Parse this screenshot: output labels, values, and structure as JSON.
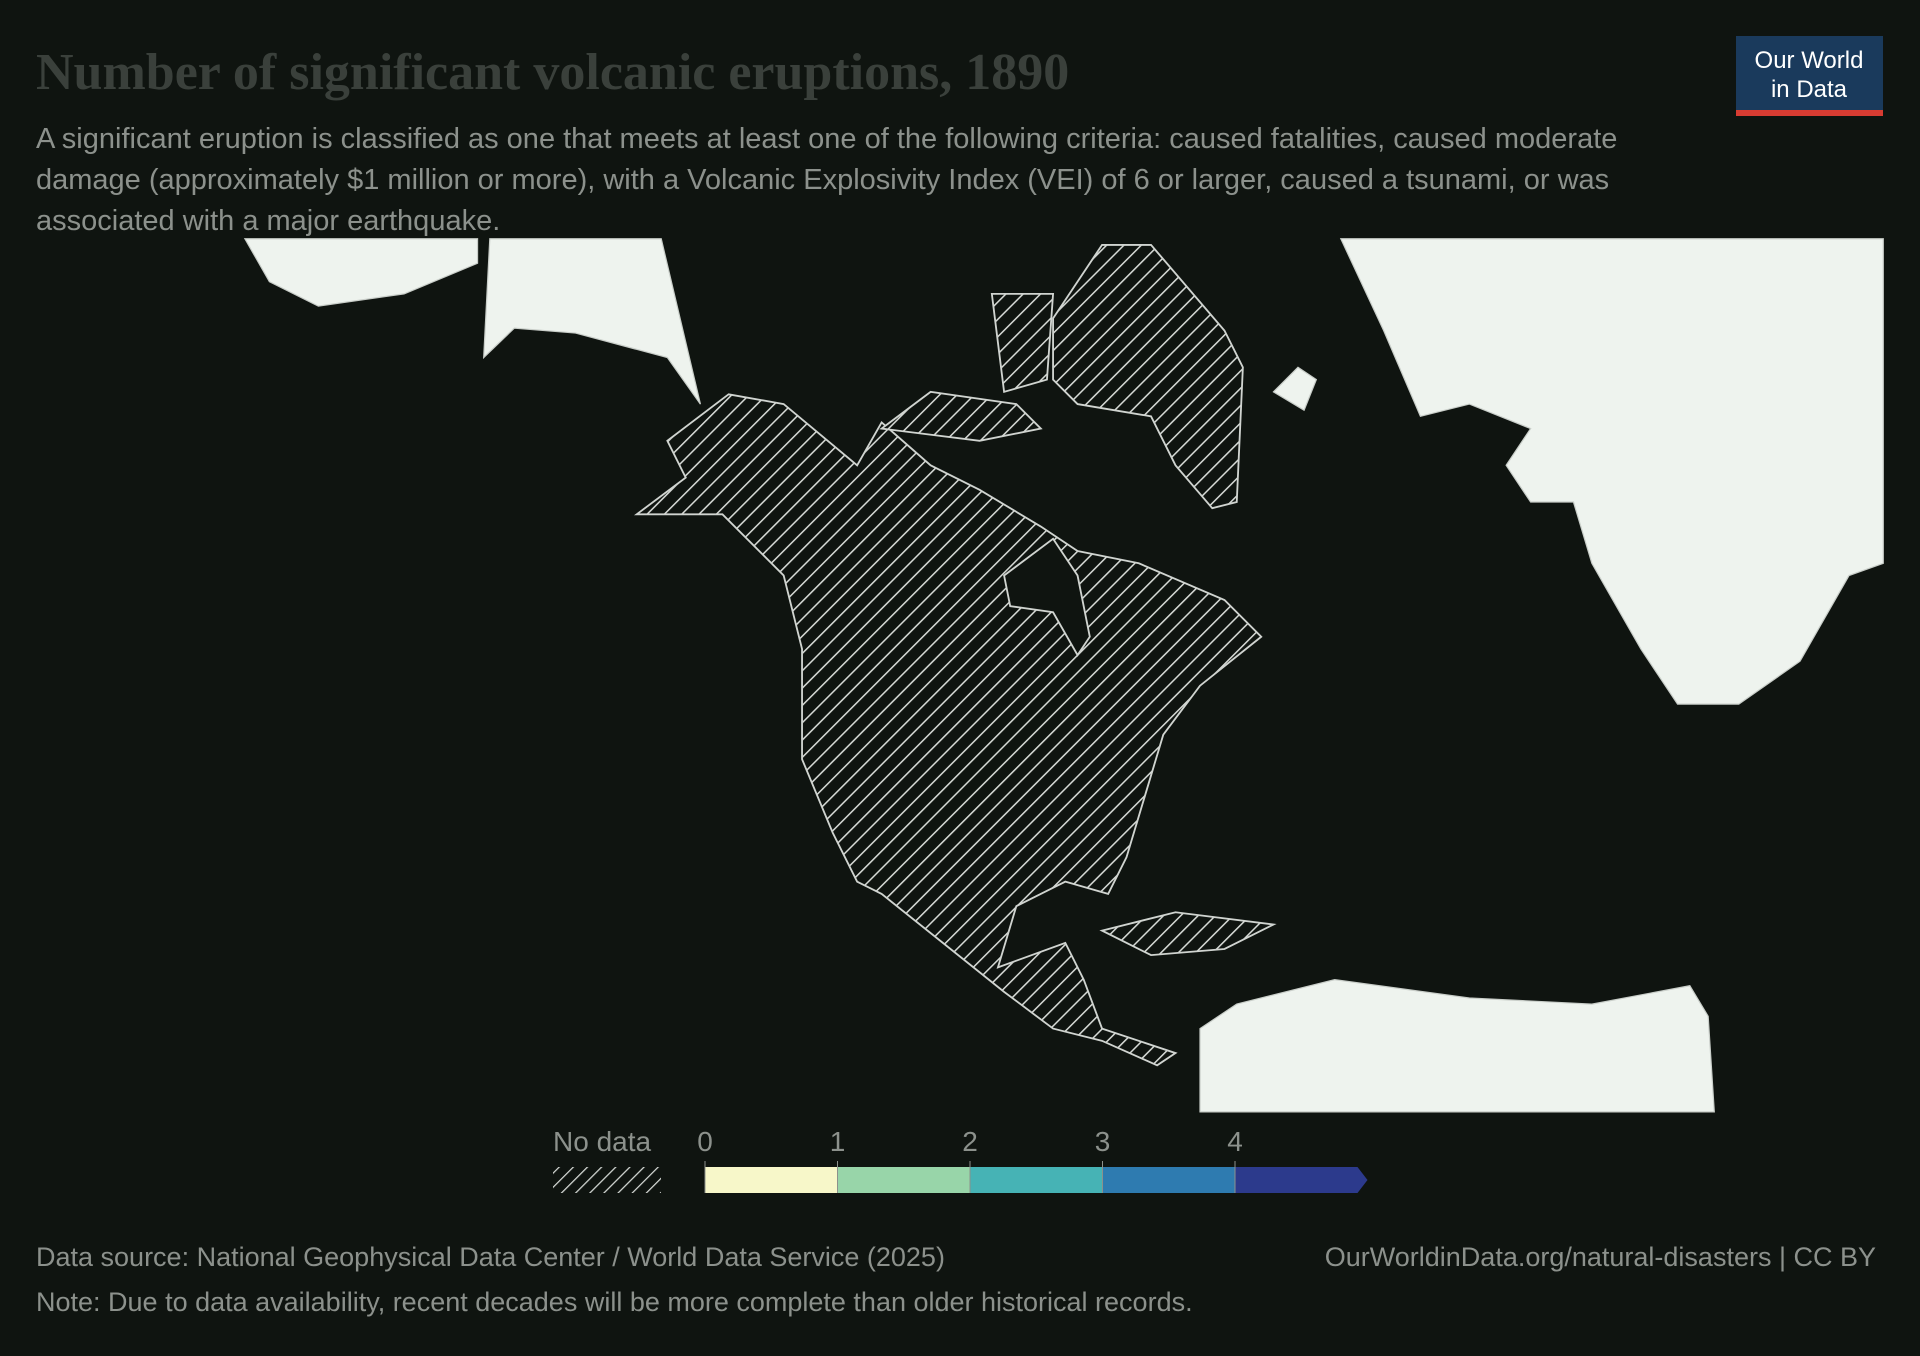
{
  "header": {
    "title": "Number of significant volcanic eruptions, 1890",
    "subtitle": "A significant eruption is classified as one that meets at least one of the following criteria: caused fatalities, caused moderate damage (approximately $1 million or more), with a Volcanic Explosivity Index (VEI) of 6 or larger, caused a tsunami, or was associated with a major earthquake.",
    "logo": [
      "Our World",
      "in Data"
    ]
  },
  "legend": {
    "no_data_label": "No data",
    "ticks": [
      0,
      1,
      2,
      3,
      4
    ],
    "colors": [
      "#f7f7c9",
      "#98d5a9",
      "#46b3b5",
      "#2e7bb0",
      "#2c3a8c"
    ]
  },
  "footer": {
    "source": "Data source: National Geophysical Data Center / World Data Service (2025)",
    "url": "OurWorldinData.org/natural-disasters | CC BY",
    "note": "Note: Due to data availability, recent decades will be more complete than older historical records."
  }
}
